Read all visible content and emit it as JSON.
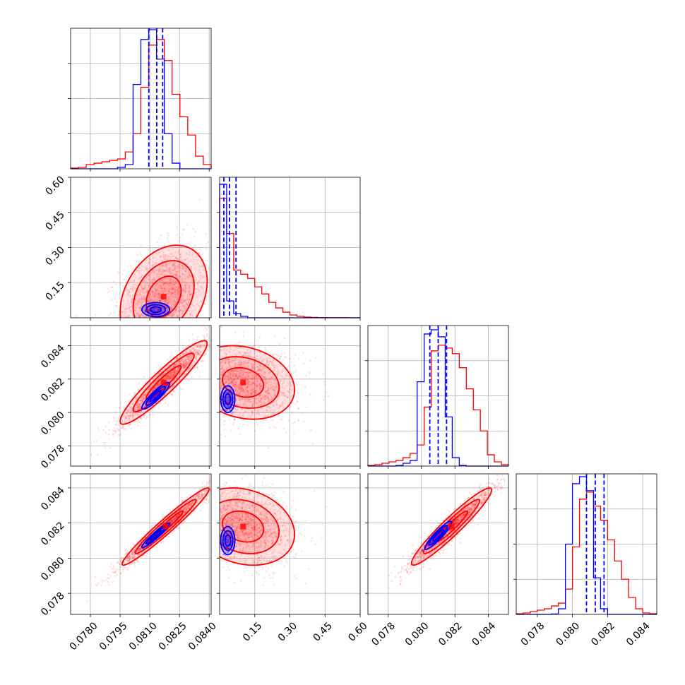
{
  "chart_data": {
    "type": "scatter",
    "title": "",
    "variant": "corner-plot",
    "colors": {
      "series_a": "#ff0000",
      "series_b": "#0000ff"
    },
    "grid": true,
    "legend": "none",
    "parameters": [
      {
        "index": 0,
        "range": [
          0.077,
          0.0841
        ],
        "ticks": [
          0.078,
          0.0795,
          0.081,
          0.0825,
          0.084
        ],
        "tick_labels": [
          "0.0780",
          "0.0795",
          "0.0810",
          "0.0825",
          "0.0840"
        ]
      },
      {
        "index": 1,
        "range": [
          0.0,
          0.6
        ],
        "ticks": [
          0.15,
          0.3,
          0.45,
          0.6
        ],
        "tick_labels": [
          "0.15",
          "0.30",
          "0.45",
          "0.60"
        ]
      },
      {
        "index": 2,
        "range": [
          0.0768,
          0.0852
        ],
        "ticks": [
          0.078,
          0.08,
          0.082,
          0.084
        ],
        "tick_labels": [
          "0.078",
          "0.080",
          "0.082",
          "0.084"
        ]
      },
      {
        "index": 3,
        "range": [
          0.0768,
          0.0848
        ],
        "ticks": [
          0.078,
          0.08,
          0.082,
          0.084
        ],
        "tick_labels": [
          "0.078",
          "0.080",
          "0.082",
          "0.084"
        ]
      }
    ],
    "marginals": [
      {
        "param": 0,
        "series_a": [
          0.005,
          0.01,
          0.03,
          0.04,
          0.05,
          0.06,
          0.07,
          0.12,
          0.25,
          0.58,
          0.88,
          0.92,
          0.77,
          0.53,
          0.37,
          0.24,
          0.09,
          0.03
        ],
        "series_b": [
          0,
          0,
          0,
          0,
          0,
          0,
          0.01,
          0.03,
          0.6,
          0.92,
          0.99,
          0.78,
          0.25,
          0.04,
          0,
          0,
          0,
          0
        ],
        "quantiles": [
          0.08095,
          0.08135,
          0.08165
        ]
      },
      {
        "param": 1,
        "series_a": [
          0.85,
          0.6,
          0.34,
          0.31,
          0.28,
          0.22,
          0.17,
          0.11,
          0.07,
          0.04,
          0.02,
          0.01,
          0.005,
          0.003,
          0.002,
          0.001,
          0.001,
          0.001,
          0.0005,
          0
        ],
        "series_b": [
          0.95,
          0.12,
          0.03,
          0.01,
          0,
          0,
          0,
          0,
          0,
          0,
          0,
          0,
          0,
          0,
          0,
          0,
          0,
          0,
          0,
          0
        ],
        "quantiles": [
          0.018,
          0.042,
          0.07
        ]
      },
      {
        "param": 2,
        "series_a": [
          0.005,
          0.01,
          0.02,
          0.03,
          0.04,
          0.06,
          0.09,
          0.15,
          0.42,
          0.82,
          0.86,
          0.84,
          0.8,
          0.7,
          0.55,
          0.4,
          0.25,
          0.08,
          0.03,
          0.01
        ],
        "series_b": [
          0,
          0,
          0,
          0,
          0.005,
          0.02,
          0.04,
          0.6,
          0.94,
          0.97,
          0.92,
          0.35,
          0.06,
          0.005,
          0,
          0,
          0,
          0,
          0,
          0
        ],
        "quantiles": [
          0.0805,
          0.081,
          0.0815
        ]
      },
      {
        "param": 3,
        "series_a": [
          0.005,
          0.01,
          0.02,
          0.03,
          0.04,
          0.06,
          0.08,
          0.18,
          0.48,
          0.82,
          0.87,
          0.77,
          0.67,
          0.53,
          0.38,
          0.25,
          0.12,
          0.04,
          0.01,
          0.005
        ],
        "series_b": [
          0,
          0,
          0,
          0,
          0,
          0.003,
          0.04,
          0.5,
          0.93,
          0.98,
          0.88,
          0.26,
          0.04,
          0,
          0,
          0,
          0,
          0,
          0,
          0
        ],
        "quantiles": [
          0.0808,
          0.0813,
          0.0818
        ]
      }
    ],
    "joint": [
      {
        "x_param": 0,
        "y_param": 1,
        "series_a": {
          "mean": [
            0.0817,
            0.09
          ],
          "sd": [
            0.0011,
            0.11
          ],
          "rho": 0.3,
          "n": 1500
        },
        "series_b": {
          "mean": [
            0.0813,
            0.035
          ],
          "sd": [
            0.00035,
            0.015
          ],
          "rho": 0.0,
          "n": 300
        }
      },
      {
        "x_param": 0,
        "y_param": 2,
        "series_a": {
          "mean": [
            0.0817,
            0.0818
          ],
          "sd": [
            0.0011,
            0.00125
          ],
          "rho": 0.93,
          "n": 1500
        },
        "series_b": {
          "mean": [
            0.0813,
            0.081
          ],
          "sd": [
            0.00035,
            0.0004
          ],
          "rho": 0.9,
          "n": 300
        }
      },
      {
        "x_param": 0,
        "y_param": 3,
        "series_a": {
          "mean": [
            0.0818,
            0.0818
          ],
          "sd": [
            0.0011,
            0.0011
          ],
          "rho": 0.97,
          "n": 1500
        },
        "series_b": {
          "mean": [
            0.0813,
            0.0813
          ],
          "sd": [
            0.00035,
            0.00035
          ],
          "rho": 0.95,
          "n": 300
        }
      },
      {
        "x_param": 1,
        "y_param": 2,
        "series_a": {
          "mean": [
            0.1,
            0.0818
          ],
          "sd": [
            0.11,
            0.0011
          ],
          "rho": -0.2,
          "n": 1500
        },
        "series_b": {
          "mean": [
            0.035,
            0.0808
          ],
          "sd": [
            0.015,
            0.0004
          ],
          "rho": 0.0,
          "n": 300
        }
      },
      {
        "x_param": 1,
        "y_param": 3,
        "series_a": {
          "mean": [
            0.1,
            0.0818
          ],
          "sd": [
            0.11,
            0.0011
          ],
          "rho": -0.2,
          "n": 1500
        },
        "series_b": {
          "mean": [
            0.035,
            0.081
          ],
          "sd": [
            0.015,
            0.0004
          ],
          "rho": 0.0,
          "n": 300
        }
      },
      {
        "x_param": 2,
        "y_param": 3,
        "series_a": {
          "mean": [
            0.0818,
            0.0818
          ],
          "sd": [
            0.0012,
            0.0011
          ],
          "rho": 0.95,
          "n": 1500
        },
        "series_b": {
          "mean": [
            0.081,
            0.0813
          ],
          "sd": [
            0.0004,
            0.0004
          ],
          "rho": 0.92,
          "n": 300
        }
      }
    ]
  }
}
